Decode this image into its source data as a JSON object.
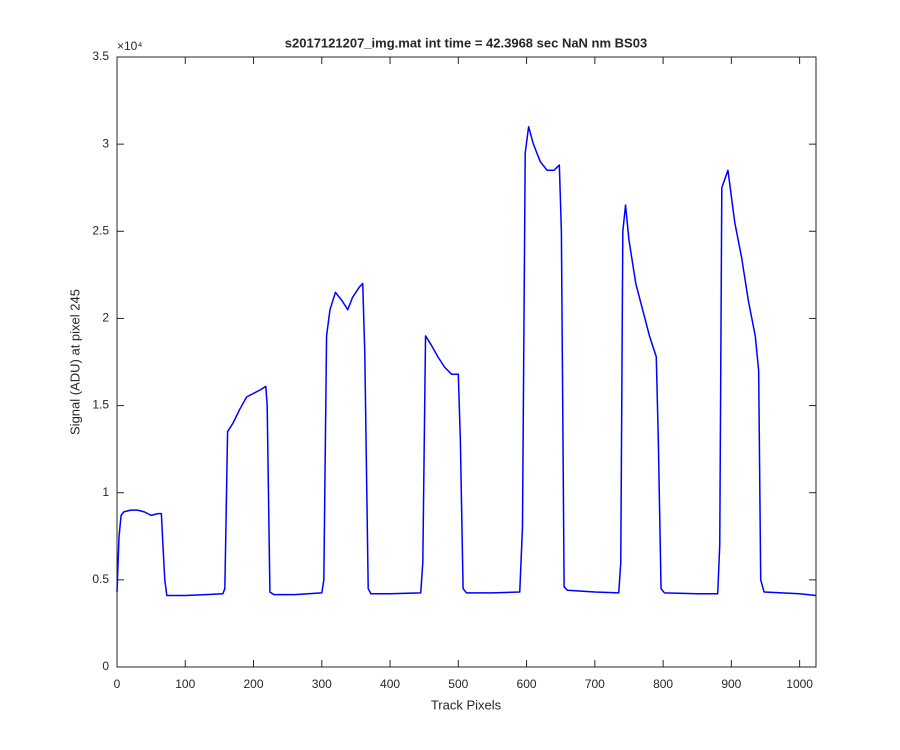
{
  "chart_data": {
    "type": "line",
    "title": "s2017121207_img.mat int time = 42.3968 sec  NaN nm BS03",
    "x_label": "Track Pixels",
    "y_label": "Signal (ADU) at pixel 245",
    "y_exponent_label": "×10⁴",
    "color": "#0000ff",
    "x": [
      0,
      3,
      6,
      10,
      20,
      30,
      40,
      50,
      60,
      65,
      67,
      70,
      73,
      80,
      100,
      130,
      155,
      158,
      162,
      170,
      180,
      190,
      200,
      210,
      218,
      220,
      224,
      230,
      260,
      300,
      303,
      307,
      312,
      320,
      330,
      338,
      345,
      355,
      360,
      363,
      368,
      372,
      400,
      445,
      448,
      452,
      460,
      470,
      480,
      490,
      500,
      503,
      507,
      512,
      550,
      590,
      594,
      598,
      603,
      610,
      620,
      630,
      640,
      648,
      651,
      655,
      660,
      700,
      735,
      738,
      741,
      745,
      750,
      760,
      770,
      780,
      790,
      793,
      797,
      802,
      850,
      880,
      883,
      886,
      895,
      905,
      915,
      925,
      935,
      940,
      943,
      948,
      1000,
      1024
    ],
    "values": [
      0.43,
      0.75,
      0.87,
      0.89,
      0.9,
      0.9,
      0.89,
      0.87,
      0.88,
      0.88,
      0.72,
      0.5,
      0.41,
      0.41,
      0.41,
      0.415,
      0.42,
      0.45,
      1.35,
      1.4,
      1.48,
      1.55,
      1.57,
      1.59,
      1.61,
      1.5,
      0.43,
      0.415,
      0.415,
      0.425,
      0.5,
      1.9,
      2.05,
      2.15,
      2.1,
      2.05,
      2.12,
      2.18,
      2.2,
      1.8,
      0.45,
      0.42,
      0.42,
      0.425,
      0.6,
      1.9,
      1.85,
      1.78,
      1.72,
      1.68,
      1.68,
      1.3,
      0.45,
      0.425,
      0.425,
      0.43,
      0.8,
      2.95,
      3.1,
      3.0,
      2.9,
      2.85,
      2.85,
      2.88,
      2.5,
      0.46,
      0.44,
      0.43,
      0.425,
      0.6,
      2.5,
      2.65,
      2.45,
      2.2,
      2.05,
      1.9,
      1.78,
      1.3,
      0.45,
      0.425,
      0.42,
      0.42,
      0.7,
      2.75,
      2.85,
      2.55,
      2.35,
      2.1,
      1.9,
      1.7,
      0.5,
      0.43,
      0.42,
      0.41
    ],
    "xlim": [
      0,
      1024
    ],
    "xticks": [
      0,
      100,
      200,
      300,
      400,
      500,
      600,
      700,
      800,
      900,
      1000
    ],
    "ylim": [
      0,
      3.5
    ],
    "yticks": [
      0,
      0.5,
      1,
      1.5,
      2,
      2.5,
      3,
      3.5
    ]
  }
}
